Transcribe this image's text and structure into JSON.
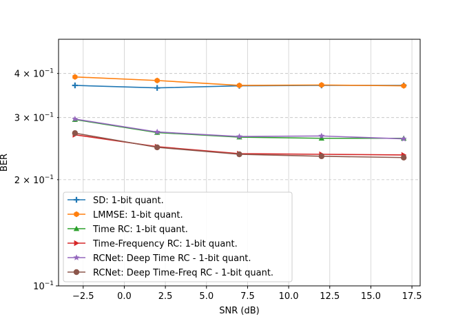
{
  "chart_data": {
    "type": "line",
    "title": "",
    "xlabel": "SNR (dB)",
    "ylabel": "BER",
    "yscale": "log",
    "xlim": [
      -4.0,
      18.0
    ],
    "ylim": [
      0.1,
      0.5
    ],
    "grid": true,
    "legend_position": "lower-left",
    "xticks": [
      {
        "value": -2.5,
        "label": "−2.5"
      },
      {
        "value": 0.0,
        "label": "0.0"
      },
      {
        "value": 2.5,
        "label": "2.5"
      },
      {
        "value": 5.0,
        "label": "5.0"
      },
      {
        "value": 7.5,
        "label": "7.5"
      },
      {
        "value": 10.0,
        "label": "10.0"
      },
      {
        "value": 12.5,
        "label": "12.5"
      },
      {
        "value": 15.0,
        "label": "15.0"
      },
      {
        "value": 17.5,
        "label": "17.5"
      }
    ],
    "yticks": [
      {
        "value": 0.1,
        "base": "10",
        "exp": "−1",
        "coef": ""
      },
      {
        "value": 0.2,
        "base": "10",
        "exp": "−1",
        "coef": "2 × "
      },
      {
        "value": 0.3,
        "base": "10",
        "exp": "−1",
        "coef": "3 × "
      },
      {
        "value": 0.4,
        "base": "10",
        "exp": "−1",
        "coef": "4 × "
      }
    ],
    "x": [
      -3,
      2,
      7,
      12,
      17
    ],
    "series": [
      {
        "name": "SD: 1-bit quant.",
        "color": "#1f77b4",
        "marker": "plus",
        "values": [
          0.37,
          0.364,
          0.369,
          0.37,
          0.37
        ]
      },
      {
        "name": "LMMSE: 1-bit quant.",
        "color": "#ff7f0e",
        "marker": "hexagon",
        "values": [
          0.391,
          0.382,
          0.37,
          0.371,
          0.369
        ]
      },
      {
        "name": "Time RC: 1-bit quant.",
        "color": "#2ca02c",
        "marker": "triangle-up",
        "values": [
          0.296,
          0.272,
          0.264,
          0.262,
          0.262
        ]
      },
      {
        "name": "Time-Frequency RC: 1-bit quant.",
        "color": "#d62728",
        "marker": "triangle-right",
        "values": [
          0.268,
          0.248,
          0.237,
          0.236,
          0.235
        ]
      },
      {
        "name": "RCNet: Deep Time RC - 1-bit quant.",
        "color": "#9467bd",
        "marker": "star",
        "values": [
          0.297,
          0.273,
          0.265,
          0.266,
          0.261
        ]
      },
      {
        "name": "RCNet: Deep Time-Freq RC - 1-bit quant.",
        "color": "#8c564b",
        "marker": "circle",
        "values": [
          0.271,
          0.247,
          0.236,
          0.233,
          0.231
        ]
      }
    ]
  }
}
